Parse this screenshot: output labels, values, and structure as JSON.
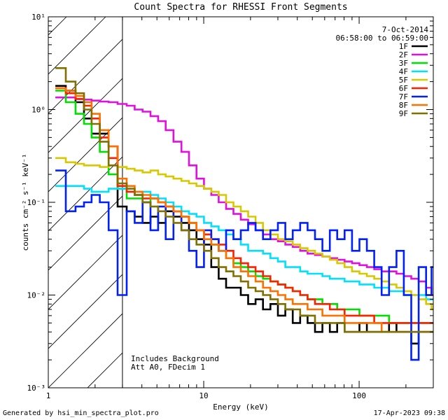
{
  "chart_data": {
    "type": "line",
    "title": "Count Spectra for RHESSI Front Segments",
    "xlabel": "Energy (keV)",
    "ylabel": "counts cm⁻² s⁻¹ keV⁻¹",
    "xscale": "log",
    "yscale": "log",
    "xlim": [
      1,
      300
    ],
    "ylim": [
      0.001,
      10
    ],
    "x_ticks": [
      {
        "value": 1,
        "label": "1"
      },
      {
        "value": 10,
        "label": "10"
      },
      {
        "value": 100,
        "label": "100"
      }
    ],
    "y_ticks": [
      {
        "value": 0.001,
        "label": "10⁻³"
      },
      {
        "value": 0.01,
        "label": "10⁻²"
      },
      {
        "value": 0.1,
        "label": "10⁻¹"
      },
      {
        "value": 1,
        "label": "10⁰"
      },
      {
        "value": 10,
        "label": "10¹"
      }
    ],
    "date": "7-Oct-2014",
    "time_range": "06:58:00 to 06:59:00",
    "shaded_region": {
      "x_from": 1,
      "x_to": 3,
      "style": "hatched"
    },
    "annotations": [
      "Includes Background",
      "Att A0, FDecim 1"
    ],
    "legend_position": "top-right",
    "energy_bins": [
      1.2,
      1.4,
      1.6,
      1.8,
      2.0,
      2.3,
      2.6,
      3.0,
      3.4,
      3.8,
      4.3,
      4.8,
      5.4,
      6.0,
      6.8,
      7.6,
      8.5,
      9.5,
      10.6,
      11.8,
      13.2,
      14.7,
      16.4,
      18.3,
      20.4,
      22.8,
      25.4,
      28.4,
      31.7,
      35.4,
      39.5,
      44.1,
      49.2,
      54.9,
      61.3,
      68.4,
      76.3,
      85.2,
      95.1,
      106.1,
      118.4,
      132.1,
      147.4,
      164.5,
      183.6,
      204.9,
      228.6,
      255.1,
      284.7,
      300.0
    ],
    "series": [
      {
        "name": "1F",
        "color": "#000000",
        "values": [
          1.8,
          1.6,
          1.2,
          0.8,
          0.55,
          0.55,
          0.4,
          0.09,
          0.08,
          0.07,
          0.06,
          0.07,
          0.06,
          0.08,
          0.07,
          0.06,
          0.05,
          0.04,
          0.035,
          0.02,
          0.015,
          0.012,
          0.012,
          0.01,
          0.008,
          0.009,
          0.007,
          0.008,
          0.006,
          0.007,
          0.005,
          0.006,
          0.005,
          0.004,
          0.005,
          0.004,
          0.005,
          0.004,
          0.004,
          0.005,
          0.004,
          0.004,
          0.004,
          0.005,
          0.004,
          0.004,
          0.003,
          0.004,
          0.004,
          0.004
        ]
      },
      {
        "name": "2F",
        "color": "#e010e0",
        "values": [
          1.35,
          1.35,
          1.3,
          1.28,
          1.25,
          1.22,
          1.2,
          1.15,
          1.1,
          1.0,
          0.95,
          0.85,
          0.75,
          0.6,
          0.45,
          0.35,
          0.25,
          0.18,
          0.14,
          0.12,
          0.1,
          0.085,
          0.075,
          0.065,
          0.058,
          0.05,
          0.045,
          0.04,
          0.038,
          0.035,
          0.033,
          0.03,
          0.028,
          0.027,
          0.026,
          0.025,
          0.024,
          0.023,
          0.022,
          0.021,
          0.02,
          0.019,
          0.018,
          0.018,
          0.017,
          0.016,
          0.015,
          0.014,
          0.012,
          0.01
        ]
      },
      {
        "name": "3F",
        "color": "#00e000",
        "values": [
          1.6,
          1.2,
          0.9,
          0.7,
          0.5,
          0.35,
          0.2,
          0.14,
          0.11,
          0.11,
          0.1,
          0.11,
          0.1,
          0.09,
          0.08,
          0.07,
          0.06,
          0.05,
          0.045,
          0.035,
          0.03,
          0.025,
          0.022,
          0.02,
          0.018,
          0.016,
          0.015,
          0.014,
          0.013,
          0.012,
          0.011,
          0.01,
          0.009,
          0.009,
          0.008,
          0.008,
          0.007,
          0.007,
          0.007,
          0.006,
          0.006,
          0.006,
          0.006,
          0.005,
          0.005,
          0.005,
          0.005,
          0.005,
          0.005,
          0.005
        ]
      },
      {
        "name": "4F",
        "color": "#00e0ff",
        "values": [
          0.15,
          0.15,
          0.15,
          0.14,
          0.13,
          0.13,
          0.14,
          0.14,
          0.13,
          0.12,
          0.13,
          0.12,
          0.11,
          0.1,
          0.09,
          0.08,
          0.075,
          0.07,
          0.06,
          0.055,
          0.05,
          0.045,
          0.04,
          0.035,
          0.03,
          0.03,
          0.028,
          0.025,
          0.023,
          0.02,
          0.02,
          0.018,
          0.017,
          0.017,
          0.016,
          0.015,
          0.015,
          0.014,
          0.014,
          0.013,
          0.013,
          0.012,
          0.012,
          0.011,
          0.011,
          0.01,
          0.01,
          0.01,
          0.009,
          0.009
        ]
      },
      {
        "name": "5F",
        "color": "#d8c800",
        "values": [
          0.3,
          0.27,
          0.26,
          0.25,
          0.25,
          0.24,
          0.25,
          0.24,
          0.23,
          0.22,
          0.21,
          0.22,
          0.2,
          0.19,
          0.18,
          0.17,
          0.16,
          0.15,
          0.14,
          0.13,
          0.12,
          0.1,
          0.09,
          0.08,
          0.07,
          0.06,
          0.05,
          0.045,
          0.04,
          0.038,
          0.035,
          0.032,
          0.03,
          0.028,
          0.026,
          0.024,
          0.022,
          0.02,
          0.018,
          0.017,
          0.016,
          0.015,
          0.014,
          0.013,
          0.012,
          0.011,
          0.01,
          0.009,
          0.008,
          0.007
        ]
      },
      {
        "name": "6F",
        "color": "#ff2000",
        "values": [
          1.7,
          1.5,
          1.3,
          1.1,
          0.8,
          0.5,
          0.3,
          0.15,
          0.13,
          0.12,
          0.11,
          0.11,
          0.1,
          0.09,
          0.08,
          0.07,
          0.06,
          0.05,
          0.045,
          0.04,
          0.035,
          0.03,
          0.025,
          0.022,
          0.02,
          0.018,
          0.016,
          0.014,
          0.013,
          0.012,
          0.011,
          0.01,
          0.009,
          0.008,
          0.008,
          0.007,
          0.007,
          0.006,
          0.006,
          0.006,
          0.006,
          0.005,
          0.005,
          0.005,
          0.005,
          0.005,
          0.005,
          0.005,
          0.005,
          0.005
        ]
      },
      {
        "name": "7F",
        "color": "#0020ff",
        "values": [
          0.22,
          0.08,
          0.09,
          0.1,
          0.12,
          0.1,
          0.05,
          0.01,
          0.08,
          0.06,
          0.1,
          0.05,
          0.09,
          0.04,
          0.08,
          0.05,
          0.03,
          0.02,
          0.05,
          0.04,
          0.03,
          0.05,
          0.04,
          0.05,
          0.06,
          0.05,
          0.04,
          0.05,
          0.06,
          0.04,
          0.05,
          0.06,
          0.05,
          0.04,
          0.03,
          0.05,
          0.04,
          0.05,
          0.03,
          0.04,
          0.03,
          0.02,
          0.01,
          0.02,
          0.03,
          0.01,
          0.002,
          0.02,
          0.01,
          0.02
        ]
      },
      {
        "name": "8F",
        "color": "#ff7000",
        "values": [
          1.7,
          1.6,
          1.4,
          1.2,
          0.9,
          0.6,
          0.4,
          0.18,
          0.15,
          0.13,
          0.12,
          0.11,
          0.1,
          0.09,
          0.08,
          0.07,
          0.06,
          0.05,
          0.04,
          0.035,
          0.03,
          0.025,
          0.02,
          0.018,
          0.016,
          0.014,
          0.012,
          0.011,
          0.01,
          0.009,
          0.008,
          0.008,
          0.007,
          0.007,
          0.006,
          0.006,
          0.006,
          0.005,
          0.005,
          0.005,
          0.005,
          0.005,
          0.004,
          0.004,
          0.004,
          0.004,
          0.004,
          0.004,
          0.004,
          0.004
        ]
      },
      {
        "name": "9F",
        "color": "#807000",
        "values": [
          2.8,
          2.0,
          1.5,
          1.0,
          0.7,
          0.45,
          0.25,
          0.16,
          0.14,
          0.12,
          0.1,
          0.09,
          0.08,
          0.07,
          0.06,
          0.05,
          0.04,
          0.035,
          0.03,
          0.025,
          0.02,
          0.018,
          0.016,
          0.014,
          0.012,
          0.011,
          0.01,
          0.009,
          0.008,
          0.007,
          0.007,
          0.006,
          0.006,
          0.005,
          0.005,
          0.005,
          0.005,
          0.004,
          0.004,
          0.004,
          0.004,
          0.004,
          0.004,
          0.004,
          0.004,
          0.004,
          0.004,
          0.004,
          0.004,
          0.004
        ]
      }
    ]
  },
  "footer": {
    "generator": "Generated by hsi_min_spectra_plot.pro",
    "timestamp": "17-Apr-2023 09:38"
  }
}
